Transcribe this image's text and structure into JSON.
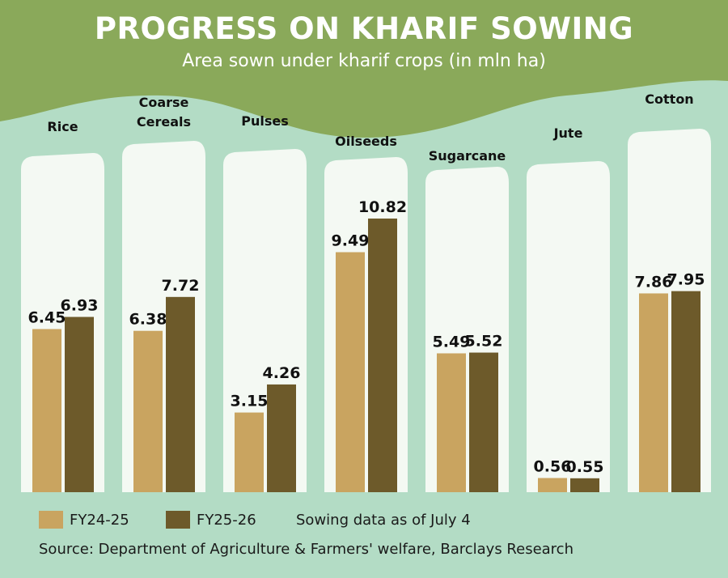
{
  "chart_data": {
    "type": "bar",
    "title": "PROGRESS ON KHARIF SOWING",
    "subtitle": "Area sown under kharif crops (in mln ha)",
    "categories": [
      {
        "lines": [
          "Rice"
        ]
      },
      {
        "lines": [
          "Coarse",
          "Cereals"
        ]
      },
      {
        "lines": [
          "Pulses"
        ]
      },
      {
        "lines": [
          "Oilseeds"
        ]
      },
      {
        "lines": [
          "Sugarcane"
        ]
      },
      {
        "lines": [
          "Jute"
        ]
      },
      {
        "lines": [
          "Cotton"
        ]
      }
    ],
    "series": [
      {
        "name": "FY24-25",
        "values": [
          6.45,
          6.38,
          3.15,
          9.49,
          5.49,
          0.56,
          7.86
        ],
        "labels": [
          "6.45",
          "6.38",
          "3.15",
          "9.49",
          "5.49",
          "0.56",
          "7.86"
        ],
        "color": "#c9a460"
      },
      {
        "name": "FY25-26",
        "values": [
          6.93,
          7.72,
          4.26,
          10.82,
          5.52,
          0.55,
          7.95
        ],
        "labels": [
          "6.93",
          "7.72",
          "4.26",
          "10.82",
          "5.52",
          "0.55",
          "7.95"
        ],
        "color": "#6d5a2a"
      }
    ],
    "ylim": [
      0,
      14.5
    ],
    "note": "Sowing data as of July 4",
    "source": "Source: Department of Agriculture & Farmers' welfare, Barclays Research",
    "colors": {
      "header": "#8aa95a",
      "background": "#b3dcc5",
      "panel": "#f4f9f3"
    }
  }
}
